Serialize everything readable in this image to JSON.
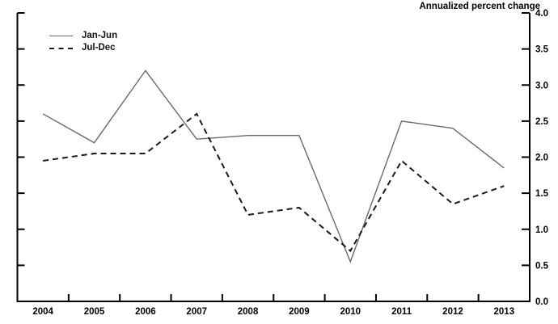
{
  "chart_data": {
    "type": "line",
    "title": "Annualized percent change",
    "categories": [
      "2004",
      "2005",
      "2006",
      "2007",
      "2008",
      "2009",
      "2010",
      "2011",
      "2012",
      "2013"
    ],
    "series": [
      {
        "name": "Jan-Jun",
        "style": "solid",
        "color": "#6a6a6a",
        "values": [
          2.6,
          2.2,
          3.2,
          2.25,
          2.3,
          2.3,
          0.55,
          2.5,
          2.4,
          1.85
        ]
      },
      {
        "name": "Jul-Dec",
        "style": "dashed",
        "color": "#1a1a1a",
        "values": [
          1.95,
          2.05,
          2.05,
          2.6,
          1.2,
          1.3,
          0.7,
          1.95,
          1.35,
          1.6
        ]
      }
    ],
    "ylabel": "",
    "xlabel": "",
    "ylim": [
      0.0,
      4.0
    ],
    "ytick_step": 0.5,
    "ytick_side": "right",
    "ytick_format_decimals": 1,
    "grid": false,
    "legend_position": "top-left",
    "axis_color": "#000000"
  }
}
